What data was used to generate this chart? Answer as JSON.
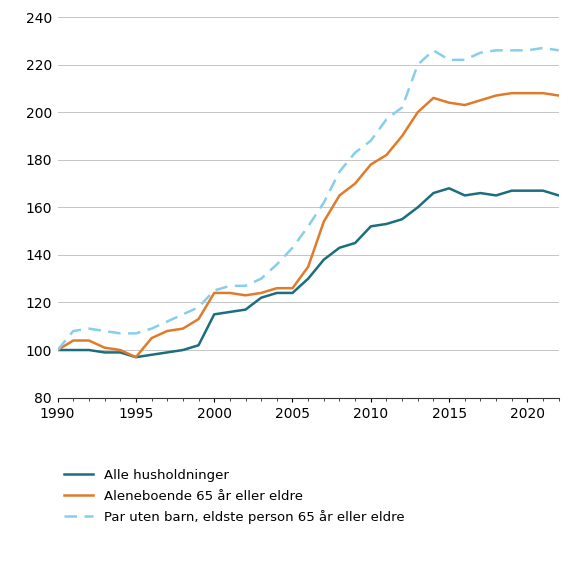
{
  "years": [
    1990,
    1991,
    1992,
    1993,
    1994,
    1995,
    1996,
    1997,
    1998,
    1999,
    2000,
    2001,
    2002,
    2003,
    2004,
    2005,
    2006,
    2007,
    2008,
    2009,
    2010,
    2011,
    2012,
    2013,
    2014,
    2015,
    2016,
    2017,
    2018,
    2019,
    2020,
    2021,
    2022
  ],
  "alle_husholdninger": [
    100,
    100,
    100,
    99,
    99,
    97,
    98,
    99,
    100,
    102,
    115,
    116,
    117,
    122,
    124,
    124,
    130,
    138,
    143,
    145,
    152,
    153,
    155,
    160,
    166,
    168,
    165,
    166,
    165,
    167,
    167,
    167,
    165
  ],
  "aleneboende": [
    100,
    104,
    104,
    101,
    100,
    97,
    105,
    108,
    109,
    113,
    124,
    124,
    123,
    124,
    126,
    126,
    135,
    154,
    165,
    170,
    178,
    182,
    190,
    200,
    206,
    204,
    203,
    205,
    207,
    208,
    208,
    208,
    207
  ],
  "par_uten_barn": [
    100,
    108,
    109,
    108,
    107,
    107,
    109,
    112,
    115,
    118,
    125,
    127,
    127,
    130,
    136,
    143,
    152,
    162,
    175,
    183,
    188,
    197,
    202,
    220,
    226,
    222,
    222,
    225,
    226,
    226,
    226,
    227,
    226
  ],
  "alle_color": "#1a6e7e",
  "aleneboende_color": "#e07b2a",
  "par_color": "#87ceeb",
  "ylim": [
    80,
    240
  ],
  "xlim": [
    1990,
    2022
  ],
  "yticks": [
    80,
    100,
    120,
    140,
    160,
    180,
    200,
    220,
    240
  ],
  "xticks": [
    1990,
    1995,
    2000,
    2005,
    2010,
    2015,
    2020
  ],
  "legend_labels": [
    "Alle husholdninger",
    "Aleneboende 65 år eller eldre",
    "Par uten barn, eldste person 65 år eller eldre"
  ],
  "figsize": [
    5.76,
    5.68
  ],
  "dpi": 100
}
